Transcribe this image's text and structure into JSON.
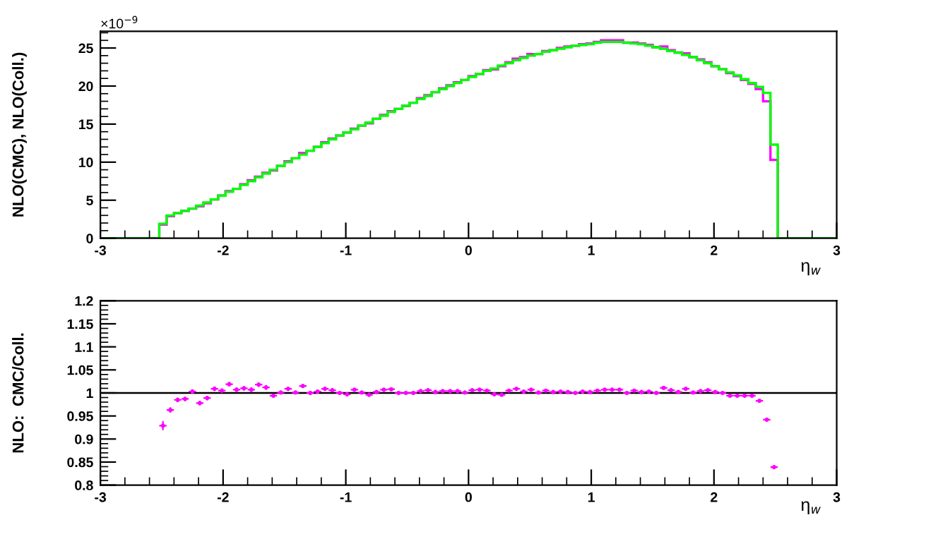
{
  "chart_data": [
    {
      "type": "histogram",
      "ylabel": "NLO(CMC), NLO(Coll.)",
      "xlabel": "η$_{w}$",
      "annotations": [
        "×10$^{−9}$"
      ],
      "xlim": [
        -3,
        3
      ],
      "xticks": [
        -3,
        -2,
        -1,
        0,
        1,
        2,
        3
      ],
      "ylim": [
        0,
        27.2
      ],
      "yticks": [
        0,
        5,
        10,
        15,
        20,
        25
      ],
      "grid": false,
      "legend": false,
      "bins": [
        -3,
        -2.94,
        -2.88,
        -2.82,
        -2.76,
        -2.7,
        -2.64,
        -2.58,
        -2.52,
        -2.46,
        -2.4,
        -2.34,
        -2.28,
        -2.22,
        -2.16,
        -2.1,
        -2.04,
        -1.98,
        -1.92,
        -1.86,
        -1.8,
        -1.74,
        -1.68,
        -1.62,
        -1.56,
        -1.5,
        -1.44,
        -1.38,
        -1.32,
        -1.26,
        -1.2,
        -1.14,
        -1.08,
        -1.02,
        -0.96,
        -0.9,
        -0.84,
        -0.78,
        -0.72,
        -0.66,
        -0.6,
        -0.54,
        -0.48,
        -0.42,
        -0.36,
        -0.3,
        -0.24,
        -0.18,
        -0.12,
        -0.06,
        0,
        0.06,
        0.12,
        0.18,
        0.24,
        0.3,
        0.36,
        0.42,
        0.48,
        0.54,
        0.6,
        0.66,
        0.72,
        0.78,
        0.84,
        0.9,
        0.96,
        1.02,
        1.08,
        1.14,
        1.2,
        1.26,
        1.32,
        1.38,
        1.44,
        1.5,
        1.56,
        1.62,
        1.68,
        1.74,
        1.8,
        1.86,
        1.92,
        1.98,
        2.04,
        2.1,
        2.16,
        2.22,
        2.28,
        2.34,
        2.4,
        2.46,
        2.52,
        2.58,
        2.64,
        2.7,
        2.76,
        2.82,
        2.88,
        2.94,
        3
      ],
      "series": [
        {
          "color": "#ff00ff",
          "values": [
            0,
            0,
            0,
            0,
            0,
            0,
            0,
            0,
            1.8,
            2.9,
            3.3,
            3.6,
            3.9,
            4.2,
            4.6,
            5.1,
            5.6,
            6.2,
            6.5,
            7.1,
            7.6,
            8.1,
            8.6,
            8.9,
            9.5,
            10.1,
            10.5,
            11.2,
            11.5,
            12.0,
            12.6,
            13.1,
            13.5,
            13.9,
            14.4,
            14.8,
            15.1,
            15.7,
            16.2,
            16.7,
            17.0,
            17.4,
            17.8,
            18.4,
            18.8,
            19.2,
            19.7,
            20.1,
            20.5,
            20.8,
            21.3,
            21.6,
            22.1,
            22.2,
            22.6,
            23.1,
            23.6,
            23.8,
            24.2,
            24.2,
            24.6,
            24.7,
            25.0,
            25.2,
            25.3,
            25.5,
            25.6,
            25.8,
            26.0,
            26.0,
            26.0,
            25.7,
            25.7,
            25.6,
            25.4,
            25.1,
            25.2,
            24.7,
            24.4,
            24.3,
            23.8,
            23.5,
            23.1,
            22.6,
            22.2,
            21.7,
            21.3,
            20.8,
            20.3,
            19.6,
            18.0,
            10.3,
            0,
            0,
            0,
            0,
            0,
            0,
            0,
            0
          ]
        },
        {
          "color": "#00ff00",
          "values": [
            0,
            0,
            0,
            0,
            0,
            0,
            0,
            0,
            1.9,
            3.0,
            3.3,
            3.6,
            3.9,
            4.3,
            4.7,
            5.1,
            5.6,
            6.1,
            6.5,
            7.0,
            7.5,
            8.0,
            8.5,
            9.0,
            9.5,
            10.0,
            10.5,
            11.0,
            11.5,
            12.0,
            12.5,
            13.0,
            13.5,
            13.9,
            14.3,
            14.8,
            15.2,
            15.7,
            16.1,
            16.6,
            17.0,
            17.4,
            17.8,
            18.3,
            18.7,
            19.2,
            19.6,
            20.0,
            20.4,
            20.8,
            21.2,
            21.6,
            22.0,
            22.3,
            22.7,
            23.0,
            23.4,
            23.7,
            24.0,
            24.2,
            24.5,
            24.7,
            24.9,
            25.1,
            25.3,
            25.4,
            25.5,
            25.7,
            25.8,
            25.8,
            25.8,
            25.7,
            25.6,
            25.5,
            25.3,
            25.1,
            24.9,
            24.6,
            24.4,
            24.1,
            23.8,
            23.4,
            23.0,
            22.6,
            22.2,
            21.8,
            21.4,
            20.9,
            20.4,
            19.9,
            19.1,
            12.3,
            0,
            0,
            0,
            0,
            0,
            0,
            0,
            0
          ]
        }
      ]
    },
    {
      "type": "scatter",
      "ylabel": "NLO:  CMC/Coll.",
      "xlabel": "η$_{w}$",
      "xlim": [
        -3,
        3
      ],
      "xticks": [
        -3,
        -2,
        -1,
        0,
        1,
        2,
        3
      ],
      "ylim": [
        0.8,
        1.2
      ],
      "yticks": [
        0.8,
        0.85,
        0.9,
        0.95,
        1,
        1.05,
        1.1,
        1.15,
        1.2
      ],
      "grid": false,
      "legend": false,
      "marker": "circle",
      "ref_lines": [
        {
          "axis": "y",
          "value": 1,
          "color": "#000000"
        }
      ],
      "x": [
        -2.49,
        -2.43,
        -2.37,
        -2.31,
        -2.25,
        -2.19,
        -2.13,
        -2.07,
        -2.01,
        -1.95,
        -1.89,
        -1.83,
        -1.77,
        -1.71,
        -1.65,
        -1.59,
        -1.53,
        -1.47,
        -1.41,
        -1.35,
        -1.29,
        -1.23,
        -1.17,
        -1.11,
        -1.05,
        -0.99,
        -0.93,
        -0.87,
        -0.81,
        -0.75,
        -0.69,
        -0.63,
        -0.57,
        -0.51,
        -0.45,
        -0.39,
        -0.33,
        -0.27,
        -0.21,
        -0.15,
        -0.09,
        -0.03,
        0.03,
        0.09,
        0.15,
        0.21,
        0.27,
        0.33,
        0.39,
        0.45,
        0.51,
        0.57,
        0.63,
        0.69,
        0.75,
        0.81,
        0.87,
        0.93,
        0.99,
        1.05,
        1.11,
        1.17,
        1.23,
        1.29,
        1.35,
        1.41,
        1.47,
        1.53,
        1.59,
        1.65,
        1.71,
        1.77,
        1.83,
        1.89,
        1.95,
        2.01,
        2.07,
        2.13,
        2.19,
        2.25,
        2.31,
        2.37,
        2.43,
        2.49
      ],
      "series": [
        {
          "color": "#ff00ff",
          "values": [
            0.929,
            0.963,
            0.985,
            0.987,
            1.003,
            0.978,
            0.989,
            1.009,
            1.005,
            1.019,
            1.007,
            1.01,
            1.007,
            1.018,
            1.012,
            0.994,
            1.001,
            1.009,
            1.001,
            1.015,
            1.0,
            1.003,
            1.009,
            1.006,
            1.0,
            0.997,
            1.007,
            1.001,
            0.996,
            1.002,
            1.007,
            1.008,
            1.0,
            1.0,
            1.0,
            1.004,
            1.006,
            1.002,
            1.004,
            1.004,
            1.004,
            1.001,
            1.006,
            1.007,
            1.005,
            0.997,
            0.996,
            1.005,
            1.009,
            1.003,
            1.007,
            1.001,
            1.005,
            1.002,
            1.003,
            1.002,
            1.0,
            1.003,
            1.002,
            1.005,
            1.007,
            1.007,
            1.007,
            1.0,
            1.005,
            1.002,
            1.003,
            1.0,
            1.011,
            1.006,
            1.002,
            1.009,
            1.001,
            1.004,
            1.006,
            1.002,
            1.0,
            0.994,
            0.994,
            0.994,
            0.994,
            0.983,
            0.942,
            0.839
          ],
          "errors": [
            0.01,
            0.006,
            0.005,
            0.005,
            0.005,
            0.005,
            0.005,
            0.005,
            0.005,
            0.005,
            0.005,
            0.005,
            0.005,
            0.005,
            0.005,
            0.004,
            0.004,
            0.004,
            0.004,
            0.004,
            0.004,
            0.004,
            0.004,
            0.004,
            0.003,
            0.003,
            0.003,
            0.003,
            0.003,
            0.003,
            0.003,
            0.003,
            0.003,
            0.003,
            0.003,
            0.003,
            0.003,
            0.003,
            0.003,
            0.003,
            0.003,
            0.003,
            0.003,
            0.003,
            0.003,
            0.003,
            0.003,
            0.003,
            0.003,
            0.003,
            0.003,
            0.003,
            0.003,
            0.003,
            0.003,
            0.003,
            0.003,
            0.003,
            0.003,
            0.003,
            0.003,
            0.003,
            0.003,
            0.003,
            0.003,
            0.003,
            0.003,
            0.003,
            0.003,
            0.003,
            0.003,
            0.003,
            0.003,
            0.003,
            0.003,
            0.003,
            0.003,
            0.003,
            0.003,
            0.003,
            0.003,
            0.003,
            0.003,
            0.003
          ],
          "xerrors": [
            0.03,
            0.03,
            0.03,
            0.03,
            0.03,
            0.03,
            0.03,
            0.03,
            0.03,
            0.03,
            0.03,
            0.03,
            0.03,
            0.03,
            0.03,
            0.03,
            0.03,
            0.03,
            0.03,
            0.03,
            0.03,
            0.03,
            0.03,
            0.03,
            0.03,
            0.03,
            0.03,
            0.03,
            0.03,
            0.03,
            0.03,
            0.03,
            0.03,
            0.03,
            0.03,
            0.03,
            0.03,
            0.03,
            0.03,
            0.03,
            0.03,
            0.03,
            0.03,
            0.03,
            0.03,
            0.03,
            0.03,
            0.03,
            0.03,
            0.03,
            0.03,
            0.03,
            0.03,
            0.03,
            0.03,
            0.03,
            0.03,
            0.03,
            0.03,
            0.03,
            0.03,
            0.03,
            0.03,
            0.03,
            0.03,
            0.03,
            0.03,
            0.03,
            0.03,
            0.03,
            0.03,
            0.03,
            0.03,
            0.03,
            0.03,
            0.03,
            0.03,
            0.03,
            0.03,
            0.03,
            0.03,
            0.03,
            0.03,
            0.03
          ]
        }
      ]
    }
  ]
}
